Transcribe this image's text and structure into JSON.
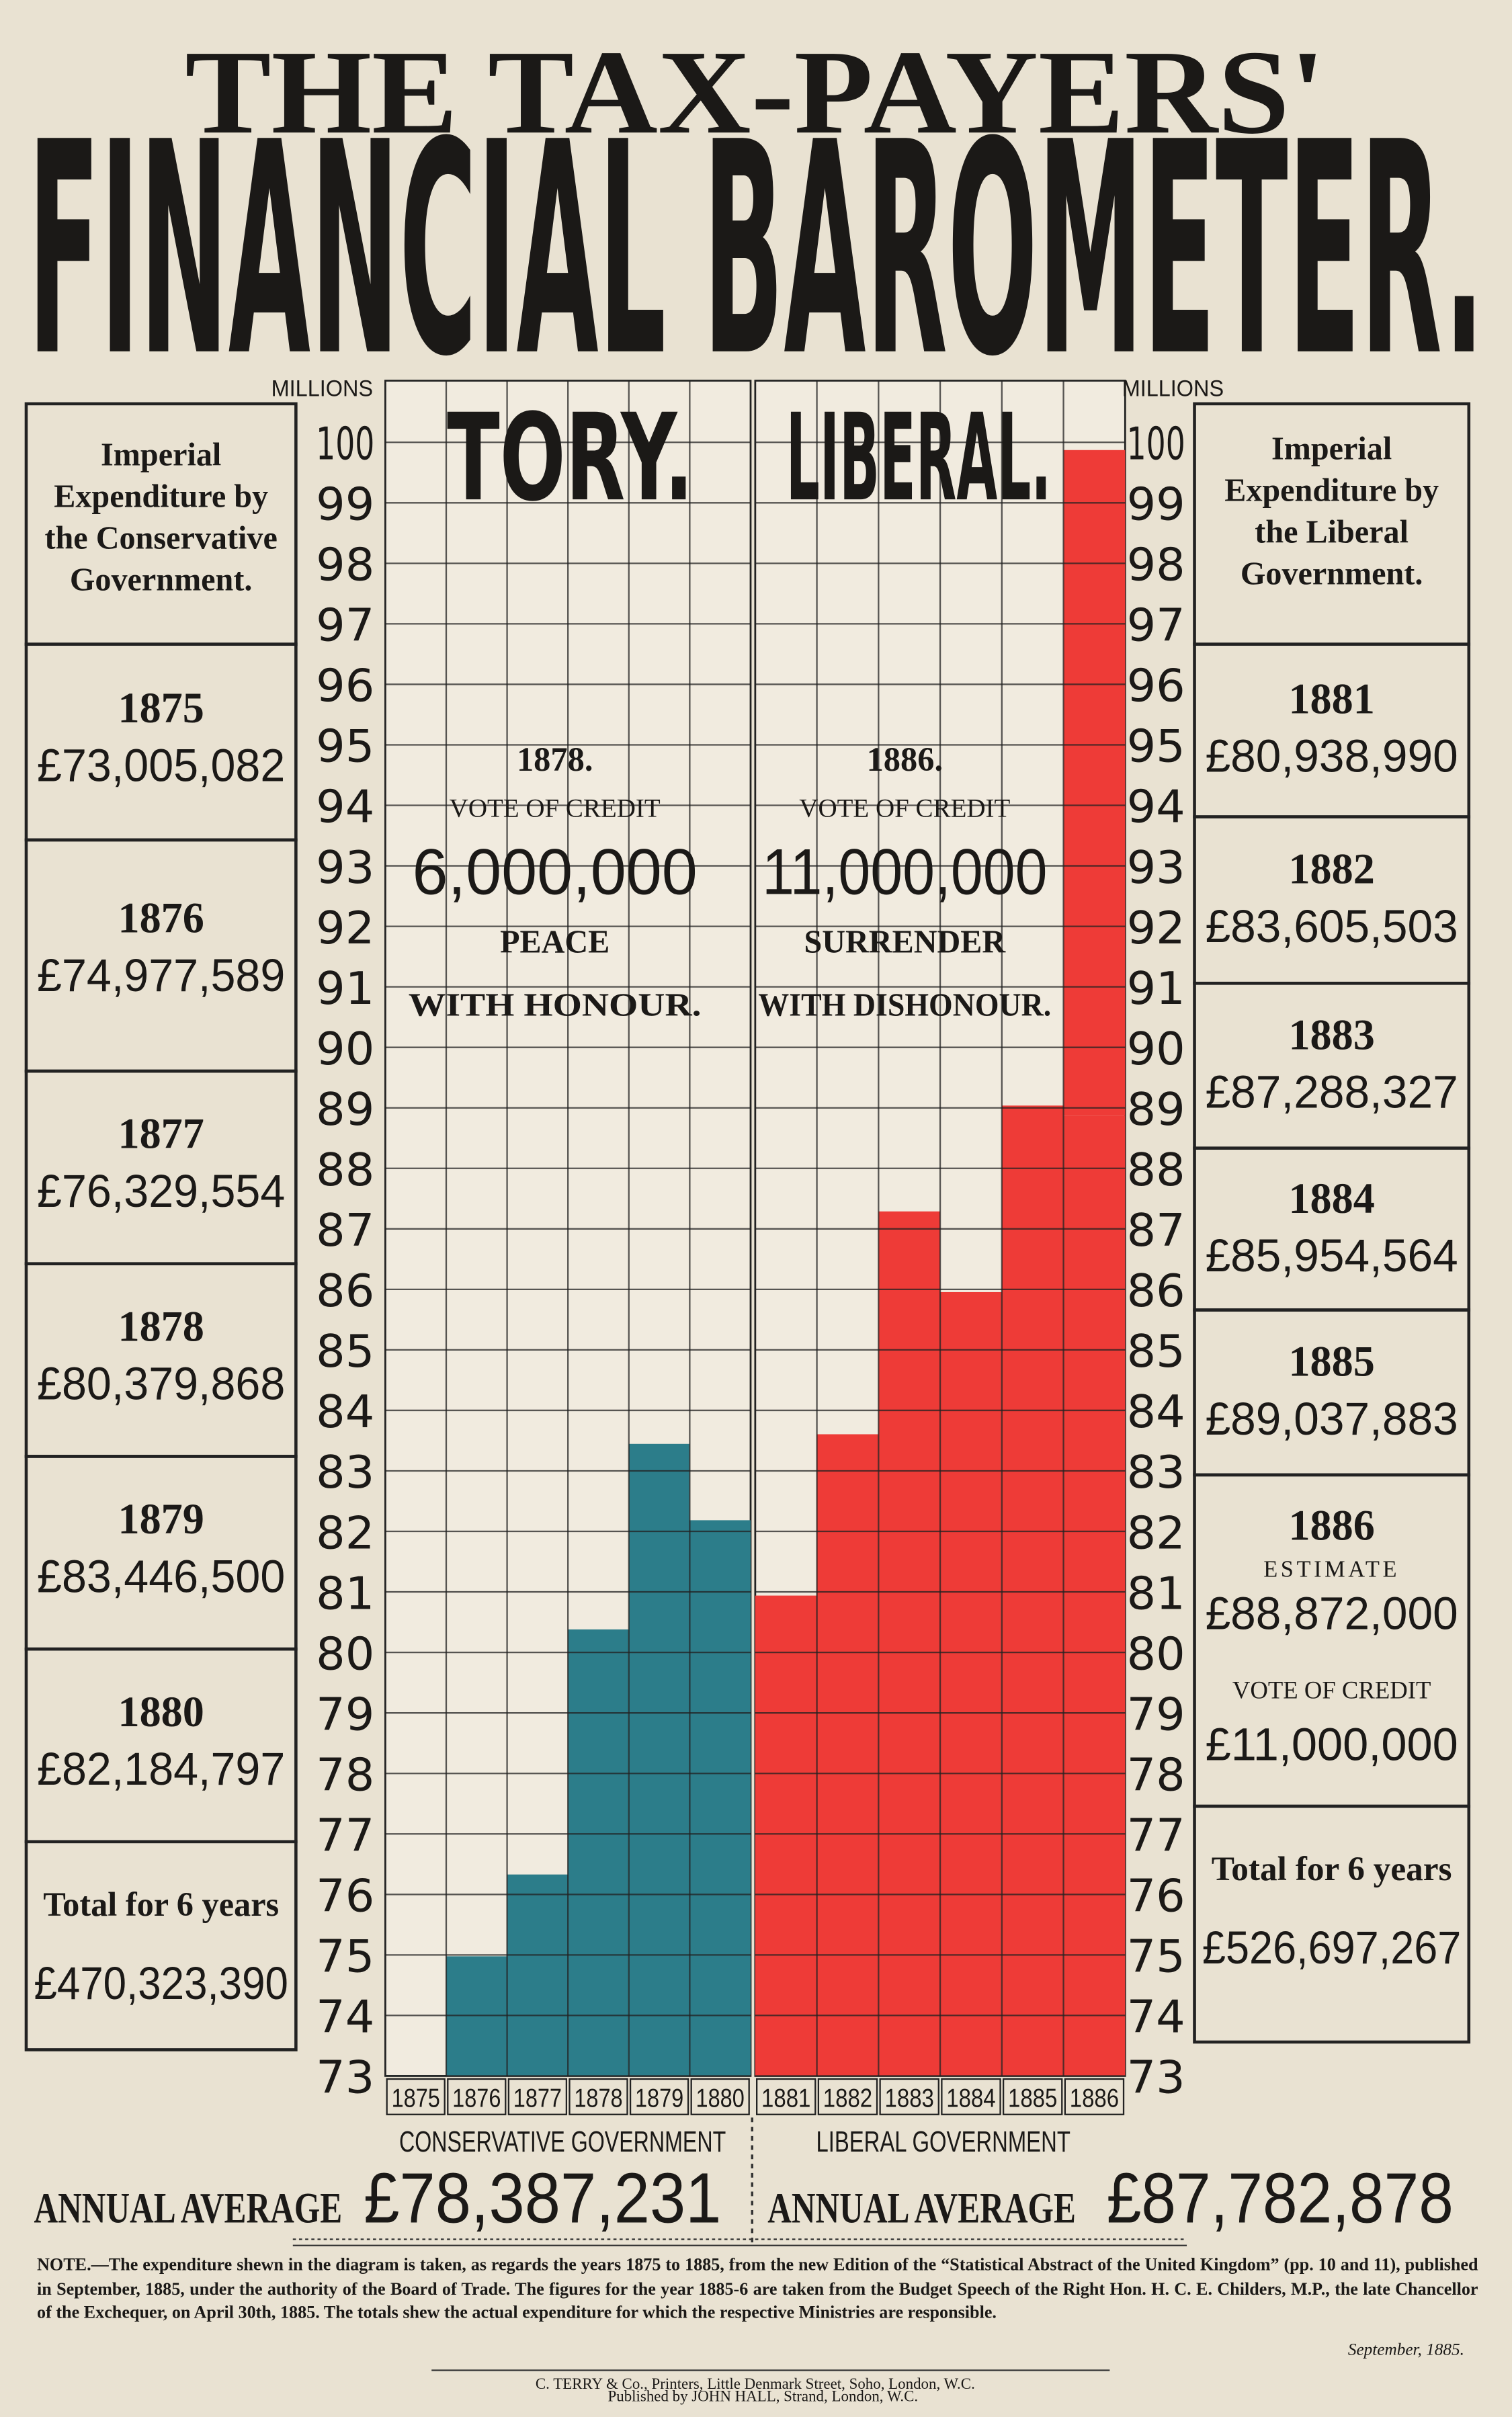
{
  "title": "THE TAX-PAYERS'",
  "subtitle": "FINANCIAL BAROMETER.",
  "chart_data": [
    {
      "type": "bar",
      "title": "TORY.",
      "y_label": "MILLIONS",
      "side_heading": [
        "Imperial",
        "Expenditure by",
        "the Conservative",
        "Government."
      ],
      "categories": [
        "1875",
        "1876",
        "1877",
        "1878",
        "1879",
        "1880"
      ],
      "values": [
        73.005082,
        74.977589,
        76.329554,
        80.379868,
        83.4465,
        82.184797
      ],
      "value_labels": [
        "£73,005,082",
        "£74,977,589",
        "£76,329,554",
        "£80,379,868",
        "£83,446,500",
        "£82,184,797"
      ],
      "color": "#2c7d8a",
      "ylim": [
        73,
        100
      ],
      "yticks": [
        73,
        74,
        75,
        76,
        77,
        78,
        79,
        80,
        81,
        82,
        83,
        84,
        85,
        86,
        87,
        88,
        89,
        90,
        91,
        92,
        93,
        94,
        95,
        96,
        97,
        98,
        99,
        100
      ],
      "grid": true,
      "x_label": "CONSERVATIVE GOVERNMENT",
      "annotation": [
        "1878.",
        "VOTE OF CREDIT",
        "6,000,000",
        "PEACE",
        "WITH HONOUR."
      ],
      "total_label": "Total for 6 years",
      "total": "£470,323,390",
      "average_label": "ANNUAL AVERAGE",
      "average": "£78,387,231"
    },
    {
      "type": "bar",
      "title": "LIBERAL.",
      "y_label": "MILLIONS",
      "side_heading": [
        "Imperial",
        "Expenditure by",
        "the Liberal",
        "Government."
      ],
      "categories": [
        "1881",
        "1882",
        "1883",
        "1884",
        "1885",
        "1886"
      ],
      "category_notes": [
        null,
        null,
        null,
        null,
        null,
        "ESTIMATE"
      ],
      "values": [
        80.93899,
        83.605503,
        87.288327,
        85.954564,
        89.037883,
        88.872
      ],
      "value_labels": [
        "£80,938,990",
        "£83,605,503",
        "£87,288,327",
        "£85,954,564",
        "£89,037,883",
        "£88,872,000"
      ],
      "stack": {
        "name": "VOTE OF CREDIT",
        "values": [
          null,
          null,
          null,
          null,
          null,
          11
        ],
        "value_labels": [
          null,
          null,
          null,
          null,
          null,
          "£11,000,000"
        ]
      },
      "color": "#ee3b37",
      "ylim": [
        73,
        100
      ],
      "yticks": [
        73,
        74,
        75,
        76,
        77,
        78,
        79,
        80,
        81,
        82,
        83,
        84,
        85,
        86,
        87,
        88,
        89,
        90,
        91,
        92,
        93,
        94,
        95,
        96,
        97,
        98,
        99,
        100
      ],
      "grid": true,
      "x_label": "LIBERAL GOVERNMENT",
      "annotation": [
        "1886.",
        "VOTE OF CREDIT",
        "11,000,000",
        "SURRENDER",
        "WITH DISHONOUR."
      ],
      "total_label": "Total for 6 years",
      "total": "£526,697,267",
      "average_label": "ANNUAL AVERAGE",
      "average": "£87,782,878"
    }
  ],
  "note": "NOTE.—The expenditure shewn in the diagram is taken, as regards the years 1875 to 1885, from the new Edition of the “Statistical Abstract of the United Kingdom” (pp. 10 and 11), published in September, 1885, under the authority of the Board of Trade. The figures for the year 1885-6 are taken from the Budget Speech of the Right Hon. H. C. E. Childers, M.P., the late Chancellor of the Exchequer, on April 30th, 1885. The totals shew the actual expenditure for which the respective Ministries are responsible.",
  "date": "September, 1885.",
  "imprint": [
    "C. TERRY & Co., Printers, Little Denmark Street, Soho, London, W.C.",
    "Published by JOHN HALL, Strand, London, W.C."
  ]
}
